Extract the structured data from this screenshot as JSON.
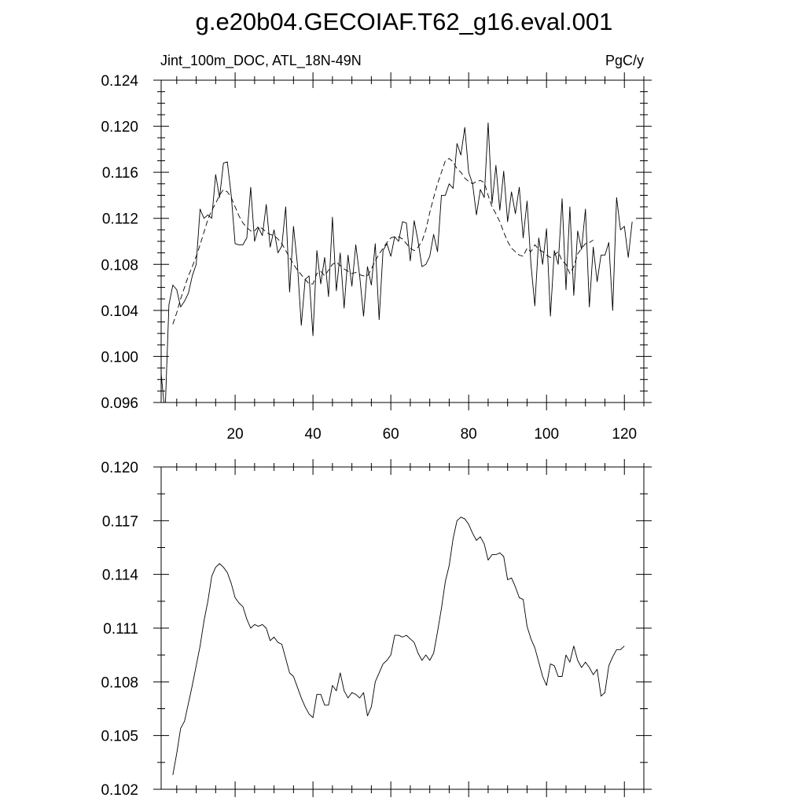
{
  "page": {
    "title": "g.e20b04.GECOIAF.T62_g16.eval.001"
  },
  "chart_data": [
    {
      "type": "line",
      "left_label": "Jint_100m_DOC, ATL_18N-49N",
      "right_label": "PgC/y",
      "xlim": [
        1,
        125
      ],
      "ylim": [
        0.096,
        0.124
      ],
      "x_ticks": [
        20,
        40,
        60,
        80,
        100,
        120
      ],
      "x_tick_labels": [
        "20",
        "40",
        "60",
        "80",
        "100",
        "120"
      ],
      "y_ticks": [
        0.096,
        0.1,
        0.104,
        0.108,
        0.112,
        0.116,
        0.12,
        0.124
      ],
      "y_tick_labels": [
        "0.096",
        "0.100",
        "0.104",
        "0.108",
        "0.112",
        "0.116",
        "0.120",
        "0.124"
      ],
      "series": [
        {
          "style": "solid",
          "x_start": 1,
          "values": [
            0.0985,
            0.095,
            0.1045,
            0.1062,
            0.1058,
            0.1043,
            0.1048,
            0.1055,
            0.107,
            0.108,
            0.1128,
            0.112,
            0.1123,
            0.112,
            0.1158,
            0.1138,
            0.1168,
            0.1169,
            0.114,
            0.1098,
            0.1097,
            0.1097,
            0.1103,
            0.1147,
            0.11,
            0.1112,
            0.1105,
            0.1132,
            0.1095,
            0.111,
            0.109,
            0.1096,
            0.113,
            0.1056,
            0.1113,
            0.108,
            0.1027,
            0.1067,
            0.107,
            0.1018,
            0.1092,
            0.1063,
            0.1086,
            0.1052,
            0.1121,
            0.1057,
            0.109,
            0.1042,
            0.1088,
            0.1061,
            0.1097,
            0.107,
            0.1035,
            0.1078,
            0.1062,
            0.1098,
            0.1032,
            0.1092,
            0.1098,
            0.1087,
            0.1104,
            0.11,
            0.1117,
            0.1116,
            0.1083,
            0.1118,
            0.11,
            0.1078,
            0.108,
            0.1087,
            0.1106,
            0.1091,
            0.114,
            0.114,
            0.115,
            0.1146,
            0.1185,
            0.1175,
            0.1199,
            0.116,
            0.115,
            0.1123,
            0.1145,
            0.1138,
            0.1203,
            0.1133,
            0.1166,
            0.1127,
            0.1161,
            0.1117,
            0.1143,
            0.1124,
            0.1147,
            0.1103,
            0.1135,
            0.108,
            0.1044,
            0.1103,
            0.108,
            0.1111,
            0.1035,
            0.1092,
            0.108,
            0.1137,
            0.1058,
            0.113,
            0.1053,
            0.1109,
            0.1093,
            0.1128,
            0.1043,
            0.1095,
            0.1065,
            0.1088,
            0.1088,
            0.1099,
            0.104,
            0.1138,
            0.111,
            0.1113,
            0.1086,
            0.1117
          ]
        },
        {
          "style": "dashed",
          "x_start": 4,
          "values": [
            0.1028,
            0.1038,
            0.105,
            0.106,
            0.107,
            0.1078,
            0.1087,
            0.1097,
            0.1108,
            0.1119,
            0.1127,
            0.1133,
            0.114,
            0.1145,
            0.1143,
            0.1138,
            0.113,
            0.1122,
            0.1116,
            0.1112,
            0.1109,
            0.1109,
            0.1113,
            0.1111,
            0.1108,
            0.1106,
            0.1105,
            0.1102,
            0.1098,
            0.1092,
            0.1086,
            0.108,
            0.1075,
            0.1071,
            0.1067,
            0.1063,
            0.1063,
            0.1072,
            0.1074,
            0.107,
            0.1075,
            0.108,
            0.1082,
            0.1079,
            0.1076,
            0.1074,
            0.1072,
            0.1073,
            0.1071,
            0.107,
            0.107,
            0.1076,
            0.1083,
            0.1089,
            0.1094,
            0.1099,
            0.1103,
            0.1104,
            0.1104,
            0.1102,
            0.1098,
            0.1094,
            0.1092,
            0.1095,
            0.11,
            0.111,
            0.1125,
            0.1138,
            0.115,
            0.116,
            0.117,
            0.1172,
            0.1169,
            0.1163,
            0.116,
            0.1155,
            0.1152,
            0.115,
            0.1152,
            0.1153,
            0.1151,
            0.114,
            0.113,
            0.1124,
            0.1117,
            0.1108,
            0.11,
            0.1094,
            0.1091,
            0.1088,
            0.1087,
            0.1094,
            0.1091,
            0.1097,
            0.1093,
            0.1091,
            0.1088,
            0.1086,
            0.1088,
            0.1091,
            0.1083,
            0.108,
            0.1072,
            0.1078,
            0.1089,
            0.1094,
            0.1098,
            0.1099,
            0.1101
          ]
        }
      ]
    },
    {
      "type": "line",
      "xlim": [
        1,
        125
      ],
      "ylim": [
        0.102,
        0.12
      ],
      "x_ticks": [
        20,
        40,
        60,
        80,
        100,
        120
      ],
      "y_ticks": [
        0.102,
        0.105,
        0.108,
        0.111,
        0.114,
        0.117,
        0.12
      ],
      "y_tick_labels": [
        "0.102",
        "0.105",
        "0.108",
        "0.111",
        "0.114",
        "0.117",
        "0.120"
      ],
      "series": [
        {
          "style": "solid",
          "x_start": 4,
          "values": [
            0.1028,
            0.104,
            0.1054,
            0.1058,
            0.1068,
            0.1078,
            0.1089,
            0.11,
            0.1114,
            0.1125,
            0.1139,
            0.1144,
            0.1146,
            0.1144,
            0.1141,
            0.1135,
            0.1127,
            0.1124,
            0.1122,
            0.1115,
            0.111,
            0.1112,
            0.1111,
            0.1112,
            0.111,
            0.1103,
            0.1105,
            0.1102,
            0.1101,
            0.1093,
            0.1085,
            0.1083,
            0.1077,
            0.1071,
            0.1066,
            0.1062,
            0.106,
            0.1073,
            0.1073,
            0.1067,
            0.1067,
            0.1078,
            0.1075,
            0.1085,
            0.1075,
            0.1071,
            0.1074,
            0.1073,
            0.1071,
            0.1074,
            0.1061,
            0.1066,
            0.108,
            0.1085,
            0.109,
            0.1092,
            0.1095,
            0.1106,
            0.1106,
            0.1105,
            0.1106,
            0.1104,
            0.1102,
            0.1096,
            0.1092,
            0.1095,
            0.1092,
            0.1096,
            0.1108,
            0.1121,
            0.1136,
            0.1145,
            0.116,
            0.117,
            0.1172,
            0.1171,
            0.1168,
            0.1163,
            0.1159,
            0.1161,
            0.1157,
            0.1148,
            0.1151,
            0.1151,
            0.1152,
            0.115,
            0.1137,
            0.1138,
            0.1133,
            0.1127,
            0.1126,
            0.1111,
            0.1104,
            0.1099,
            0.1091,
            0.1083,
            0.1078,
            0.109,
            0.1089,
            0.1083,
            0.1083,
            0.1095,
            0.1091,
            0.11,
            0.1092,
            0.1088,
            0.1091,
            0.1088,
            0.1084,
            0.1087,
            0.1072,
            0.1074,
            0.1089,
            0.1094,
            0.1098,
            0.1098,
            0.11
          ]
        }
      ]
    }
  ]
}
